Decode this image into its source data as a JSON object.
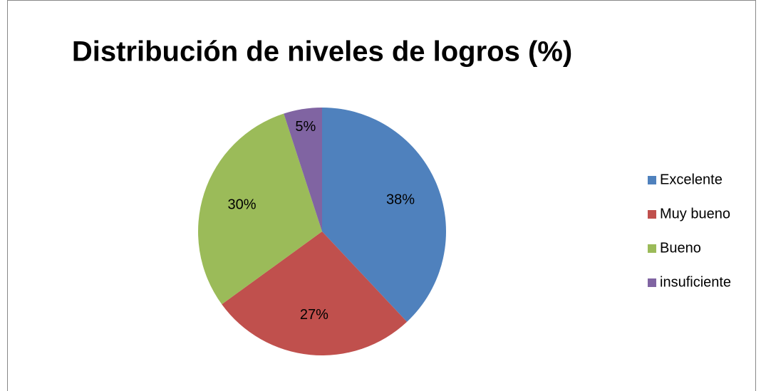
{
  "chart_data": {
    "type": "pie",
    "title": "Distribución de niveles de logros (%)",
    "categories": [
      "Excelente",
      "Muy bueno",
      "Bueno",
      "insuficiente"
    ],
    "values": [
      38,
      27,
      30,
      5
    ],
    "value_labels": [
      "38%",
      "27%",
      "30%",
      "5%"
    ],
    "colors": [
      "#4f81bd",
      "#c0504d",
      "#9bbb59",
      "#8064a2"
    ],
    "legend": "right"
  }
}
